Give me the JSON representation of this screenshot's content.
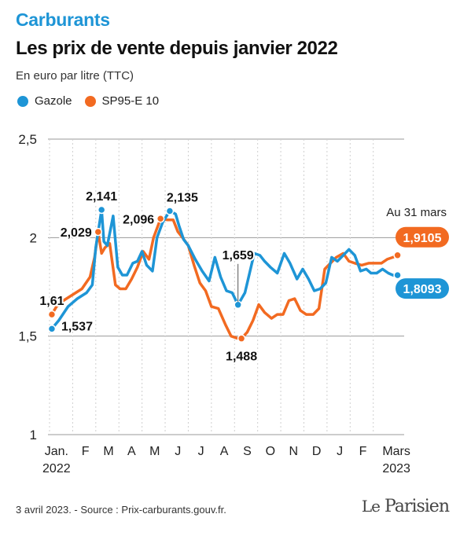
{
  "header": {
    "kicker": "Carburants",
    "title": "Les prix de vente depuis janvier 2022",
    "subtitle": "En euro par litre (TTC)"
  },
  "legend": [
    {
      "label": "Gazole",
      "color": "#1e95d6"
    },
    {
      "label": "SP95-E 10",
      "color": "#f26a21"
    }
  ],
  "footer": {
    "source": "3 avril 2023. - Source : Prix-carburants.gouv.fr.",
    "logo": "Le Parisien"
  },
  "chart_data": {
    "type": "line",
    "ylim": [
      1,
      2.5
    ],
    "yticks": [
      "2,5",
      "2",
      "1,5",
      "1"
    ],
    "ytick_values": [
      2.5,
      2,
      1.5,
      1
    ],
    "grid": "horizontal",
    "xlim": [
      0,
      15.2
    ],
    "month_labels": [
      {
        "label": "Jan.",
        "sub": "2022",
        "pos": 0.3
      },
      {
        "label": "F",
        "pos": 1.55
      },
      {
        "label": "M",
        "pos": 2.55
      },
      {
        "label": "A",
        "pos": 3.55
      },
      {
        "label": "M",
        "pos": 4.55
      },
      {
        "label": "J",
        "pos": 5.55
      },
      {
        "label": "J",
        "pos": 6.55
      },
      {
        "label": "A",
        "pos": 7.55
      },
      {
        "label": "S",
        "pos": 8.55
      },
      {
        "label": "O",
        "pos": 9.55
      },
      {
        "label": "N",
        "pos": 10.55
      },
      {
        "label": "D",
        "pos": 11.55
      },
      {
        "label": "J",
        "pos": 12.55
      },
      {
        "label": "F",
        "pos": 13.55
      },
      {
        "label": "Mars",
        "sub": "2023",
        "pos": 15.0
      }
    ],
    "month_dividers": [
      0,
      1,
      2,
      3,
      4,
      5,
      6,
      7,
      8,
      9,
      10,
      11,
      12,
      13,
      14
    ],
    "series": [
      {
        "name": "Gazole",
        "color": "#1e95d6",
        "x": [
          0.1,
          0.4,
          0.8,
          1.2,
          1.6,
          1.85,
          2.0,
          2.25,
          2.35,
          2.5,
          2.75,
          2.95,
          3.15,
          3.35,
          3.6,
          3.8,
          4.0,
          4.2,
          4.45,
          4.65,
          4.9,
          5.2,
          5.45,
          5.6,
          5.8,
          6.0,
          6.3,
          6.6,
          6.9,
          7.15,
          7.4,
          7.65,
          7.9,
          8.15,
          8.45,
          8.65,
          8.85,
          9.1,
          9.3,
          9.55,
          9.85,
          10.15,
          10.4,
          10.7,
          10.95,
          11.2,
          11.45,
          11.7,
          11.95,
          12.2,
          12.45,
          12.7,
          12.95,
          13.2,
          13.45,
          13.7,
          13.9,
          14.15,
          14.4,
          14.65,
          14.85,
          15.05
        ],
        "y": [
          1.537,
          1.58,
          1.65,
          1.69,
          1.72,
          1.76,
          1.95,
          2.141,
          1.98,
          1.96,
          2.11,
          1.85,
          1.81,
          1.81,
          1.87,
          1.88,
          1.93,
          1.86,
          1.83,
          2.0,
          2.08,
          2.135,
          2.12,
          2.06,
          1.99,
          1.96,
          1.89,
          1.83,
          1.78,
          1.9,
          1.8,
          1.73,
          1.72,
          1.659,
          1.72,
          1.82,
          1.92,
          1.91,
          1.88,
          1.85,
          1.82,
          1.92,
          1.87,
          1.79,
          1.84,
          1.79,
          1.73,
          1.74,
          1.77,
          1.9,
          1.88,
          1.91,
          1.94,
          1.91,
          1.83,
          1.84,
          1.82,
          1.82,
          1.84,
          1.82,
          1.8093,
          1.8093
        ]
      },
      {
        "name": "SP95-E 10",
        "color": "#f26a21",
        "x": [
          0.1,
          0.3,
          0.6,
          1.0,
          1.4,
          1.75,
          1.95,
          2.1,
          2.25,
          2.4,
          2.6,
          2.85,
          3.05,
          3.3,
          3.55,
          3.8,
          4.05,
          4.3,
          4.5,
          4.8,
          5.1,
          5.35,
          5.55,
          5.75,
          6.0,
          6.25,
          6.5,
          6.75,
          7.0,
          7.3,
          7.6,
          7.85,
          8.1,
          8.3,
          8.55,
          8.8,
          9.05,
          9.3,
          9.6,
          9.85,
          10.1,
          10.35,
          10.6,
          10.85,
          11.1,
          11.4,
          11.65,
          11.9,
          12.15,
          12.4,
          12.7,
          12.95,
          13.2,
          13.5,
          13.8,
          14.1,
          14.35,
          14.6,
          14.85,
          15.05
        ],
        "y": [
          1.61,
          1.65,
          1.68,
          1.71,
          1.74,
          1.8,
          1.9,
          2.029,
          1.92,
          1.95,
          1.97,
          1.76,
          1.74,
          1.74,
          1.79,
          1.85,
          1.93,
          1.89,
          2.0,
          2.096,
          2.09,
          2.09,
          2.03,
          2.0,
          1.96,
          1.86,
          1.77,
          1.73,
          1.65,
          1.64,
          1.56,
          1.5,
          1.49,
          1.488,
          1.52,
          1.58,
          1.66,
          1.62,
          1.59,
          1.61,
          1.61,
          1.68,
          1.69,
          1.63,
          1.61,
          1.61,
          1.64,
          1.84,
          1.87,
          1.9,
          1.92,
          1.88,
          1.87,
          1.86,
          1.87,
          1.87,
          1.87,
          1.89,
          1.9,
          1.9105
        ]
      }
    ],
    "annotations": [
      {
        "text": "1,537",
        "series": 0,
        "x": 0.1,
        "y": 1.537,
        "pos": "below-right"
      },
      {
        "text": "1,61",
        "series": 1,
        "x": 0.1,
        "y": 1.61,
        "pos": "above"
      },
      {
        "text": "2,141",
        "series": 0,
        "x": 2.25,
        "y": 2.141,
        "pos": "above"
      },
      {
        "text": "2,029",
        "series": 1,
        "x": 2.1,
        "y": 2.029,
        "pos": "left"
      },
      {
        "text": "2,135",
        "series": 0,
        "x": 5.2,
        "y": 2.135,
        "pos": "above-right"
      },
      {
        "text": "2,096",
        "series": 1,
        "x": 4.8,
        "y": 2.096,
        "pos": "left"
      },
      {
        "text": "1,659",
        "series": 0,
        "x": 8.15,
        "y": 1.659,
        "pos": "above-leader"
      },
      {
        "text": "1,488",
        "series": 1,
        "x": 8.3,
        "y": 1.488,
        "pos": "below"
      }
    ],
    "end_note": "Au 31 mars",
    "end_labels": [
      {
        "text": "1,9105",
        "series": 1
      },
      {
        "text": "1,8093",
        "series": 0
      }
    ]
  }
}
